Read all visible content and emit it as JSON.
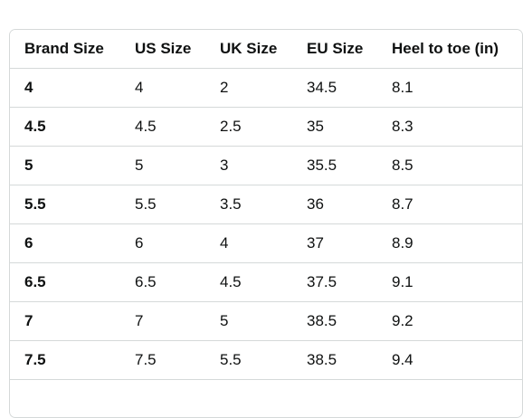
{
  "table": {
    "headers": [
      "Brand Size",
      "US Size",
      "UK Size",
      "EU Size",
      "Heel to toe (in)"
    ],
    "rows": [
      [
        "4",
        "4",
        "2",
        "34.5",
        "8.1"
      ],
      [
        "4.5",
        "4.5",
        "2.5",
        "35",
        "8.3"
      ],
      [
        "5",
        "5",
        "3",
        "35.5",
        "8.5"
      ],
      [
        "5.5",
        "5.5",
        "3.5",
        "36",
        "8.7"
      ],
      [
        "6",
        "6",
        "4",
        "37",
        "8.9"
      ],
      [
        "6.5",
        "6.5",
        "4.5",
        "37.5",
        "9.1"
      ],
      [
        "7",
        "7",
        "5",
        "38.5",
        "9.2"
      ],
      [
        "7.5",
        "7.5",
        "5.5",
        "38.5",
        "9.4"
      ]
    ]
  },
  "colors": {
    "text": "#0f1111",
    "border": "#d5d9d9",
    "background": "#ffffff"
  }
}
